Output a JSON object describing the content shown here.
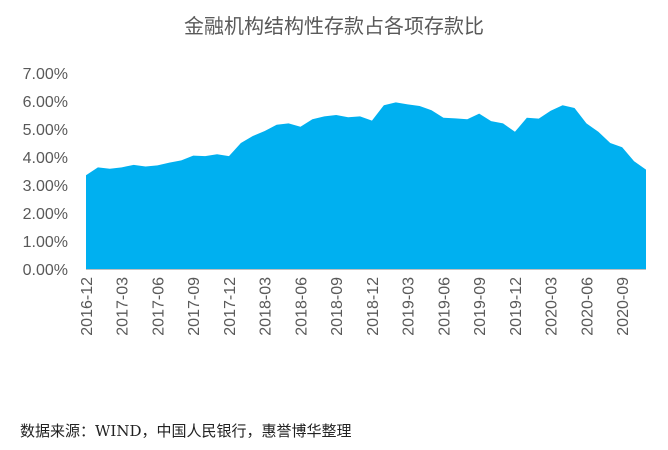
{
  "chart_data": {
    "type": "area",
    "title": "金融机构结构性存款占各项存款比",
    "xlabel": "",
    "ylabel": "",
    "ylim": [
      0,
      7
    ],
    "y_ticks": [
      "0.00%",
      "1.00%",
      "2.00%",
      "3.00%",
      "4.00%",
      "5.00%",
      "6.00%",
      "7.00%"
    ],
    "x_tick_labels": [
      "2016-12",
      "2017-03",
      "2017-06",
      "2017-09",
      "2017-12",
      "2018-03",
      "2018-06",
      "2018-09",
      "2018-12",
      "2019-03",
      "2019-06",
      "2019-09",
      "2019-12",
      "2020-03",
      "2020-06",
      "2020-09"
    ],
    "x": [
      "2016-12",
      "2017-01",
      "2017-02",
      "2017-03",
      "2017-04",
      "2017-05",
      "2017-06",
      "2017-07",
      "2017-08",
      "2017-09",
      "2017-10",
      "2017-11",
      "2017-12",
      "2018-01",
      "2018-02",
      "2018-03",
      "2018-04",
      "2018-05",
      "2018-06",
      "2018-07",
      "2018-08",
      "2018-09",
      "2018-10",
      "2018-11",
      "2018-12",
      "2019-01",
      "2019-02",
      "2019-03",
      "2019-04",
      "2019-05",
      "2019-06",
      "2019-07",
      "2019-08",
      "2019-09",
      "2019-10",
      "2019-11",
      "2019-12",
      "2020-01",
      "2020-02",
      "2020-03",
      "2020-04",
      "2020-05",
      "2020-06",
      "2020-07",
      "2020-08",
      "2020-09",
      "2020-10",
      "2020-11"
    ],
    "values": [
      3.35,
      3.63,
      3.58,
      3.63,
      3.72,
      3.66,
      3.7,
      3.8,
      3.88,
      4.05,
      4.03,
      4.1,
      4.03,
      4.5,
      4.75,
      4.93,
      5.15,
      5.2,
      5.08,
      5.35,
      5.45,
      5.5,
      5.42,
      5.45,
      5.3,
      5.85,
      5.95,
      5.88,
      5.82,
      5.67,
      5.4,
      5.38,
      5.35,
      5.55,
      5.28,
      5.2,
      4.9,
      5.4,
      5.37,
      5.65,
      5.85,
      5.75,
      5.2,
      4.9,
      4.5,
      4.35,
      3.85,
      3.55
    ],
    "color": "#00b0f0",
    "grid": false,
    "legend": "none"
  },
  "source_note": "数据来源：WIND，中国人民银行，惠誉博华整理"
}
